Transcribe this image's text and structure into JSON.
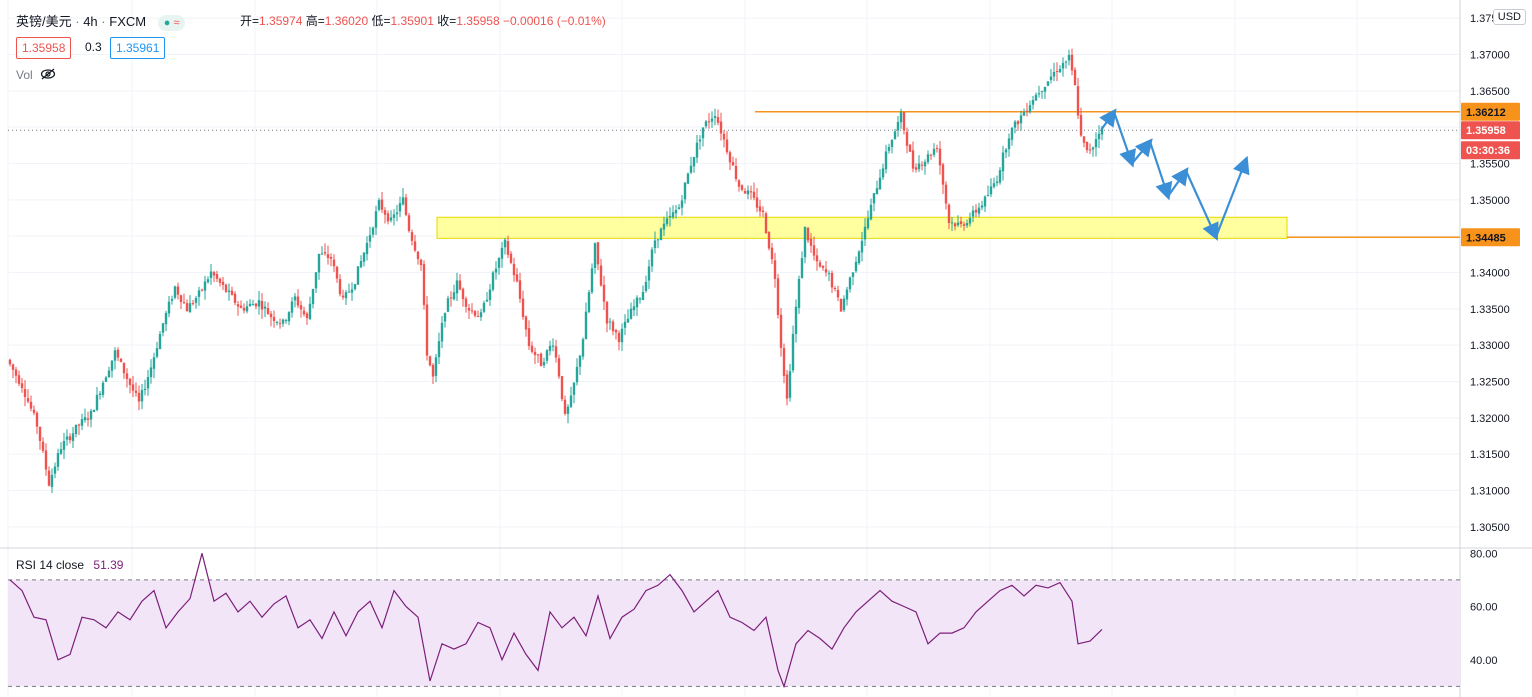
{
  "header": {
    "symbol": "英镑/美元",
    "interval": "4h",
    "exchange": "FXCM",
    "open_label": "开=",
    "open": "1.35974",
    "high_label": "高=",
    "high": "1.36020",
    "low_label": "低=",
    "low": "1.35901",
    "close_label": "收=",
    "close": "1.35958",
    "change": "−0.00016 (−0.01%)",
    "bid": "1.35958",
    "spread": "0.3",
    "ask": "1.35961",
    "vol_label": "Vol"
  },
  "axis": {
    "currency": "USD",
    "price_ticks": [
      "1.37500",
      "1.37000",
      "1.36500",
      "1.36000",
      "1.35500",
      "1.35000",
      "1.34500",
      "1.34000",
      "1.33500",
      "1.33000",
      "1.32500",
      "1.32000",
      "1.31500",
      "1.31000",
      "1.30500"
    ],
    "rsi_ticks": [
      "80.00",
      "60.00",
      "40.00"
    ]
  },
  "price_tags": {
    "resistance": "1.36212",
    "last": "1.35958",
    "countdown": "03:30:36",
    "support": "1.34485"
  },
  "rsi": {
    "label": "RSI 14 close",
    "value": "51.39"
  },
  "colors": {
    "up": "#26a69a",
    "down": "#ef5350",
    "level_line": "#f7931a",
    "zone_fill": "#ffff80",
    "arrow": "#3b8fd6",
    "rsi_line": "#7b1f7a",
    "rsi_band": "#f3e5f8"
  },
  "chart_data": {
    "type": "candlestick",
    "title": "英镑/美元 · 4h · FXCM",
    "y_range": [
      1.3025,
      1.3775
    ],
    "resistance_level": 1.36212,
    "support_level": 1.34485,
    "support_zone": [
      1.3447,
      1.3476
    ],
    "anchors": [
      [
        0,
        1.328
      ],
      [
        5,
        1.3245
      ],
      [
        10,
        1.319
      ],
      [
        14,
        1.311
      ],
      [
        18,
        1.316
      ],
      [
        24,
        1.319
      ],
      [
        28,
        1.3205
      ],
      [
        32,
        1.325
      ],
      [
        36,
        1.329
      ],
      [
        40,
        1.3255
      ],
      [
        44,
        1.322
      ],
      [
        48,
        1.327
      ],
      [
        52,
        1.333
      ],
      [
        56,
        1.338
      ],
      [
        60,
        1.335
      ],
      [
        64,
        1.337
      ],
      [
        68,
        1.34
      ],
      [
        72,
        1.338
      ],
      [
        78,
        1.335
      ],
      [
        84,
        1.336
      ],
      [
        88,
        1.334
      ],
      [
        92,
        1.333
      ],
      [
        96,
        1.3365
      ],
      [
        100,
        1.3335
      ],
      [
        104,
        1.3425
      ],
      [
        108,
        1.342
      ],
      [
        112,
        1.336
      ],
      [
        116,
        1.339
      ],
      [
        120,
        1.344
      ],
      [
        124,
        1.3495
      ],
      [
        128,
        1.347
      ],
      [
        132,
        1.35
      ],
      [
        134,
        1.346
      ],
      [
        138,
        1.341
      ],
      [
        140,
        1.329
      ],
      [
        142,
        1.3255
      ],
      [
        146,
        1.335
      ],
      [
        150,
        1.3385
      ],
      [
        154,
        1.335
      ],
      [
        158,
        1.334
      ],
      [
        162,
        1.3395
      ],
      [
        166,
        1.344
      ],
      [
        170,
        1.3385
      ],
      [
        174,
        1.33
      ],
      [
        178,
        1.3275
      ],
      [
        182,
        1.3305
      ],
      [
        184,
        1.326
      ],
      [
        186,
        1.32
      ],
      [
        188,
        1.3225
      ],
      [
        192,
        1.331
      ],
      [
        196,
        1.3435
      ],
      [
        200,
        1.3335
      ],
      [
        204,
        1.331
      ],
      [
        208,
        1.3345
      ],
      [
        212,
        1.3375
      ],
      [
        216,
        1.3445
      ],
      [
        220,
        1.347
      ],
      [
        224,
        1.349
      ],
      [
        228,
        1.355
      ],
      [
        232,
        1.36
      ],
      [
        236,
        1.362
      ],
      [
        240,
        1.357
      ],
      [
        244,
        1.352
      ],
      [
        248,
        1.3505
      ],
      [
        252,
        1.348
      ],
      [
        256,
        1.3395
      ],
      [
        258,
        1.33
      ],
      [
        260,
        1.3225
      ],
      [
        262,
        1.3315
      ],
      [
        266,
        1.346
      ],
      [
        270,
        1.341
      ],
      [
        274,
        1.3395
      ],
      [
        278,
        1.335
      ],
      [
        282,
        1.3405
      ],
      [
        286,
        1.346
      ],
      [
        290,
        1.352
      ],
      [
        294,
        1.3575
      ],
      [
        298,
        1.3615
      ],
      [
        302,
        1.3545
      ],
      [
        306,
        1.3555
      ],
      [
        310,
        1.3575
      ],
      [
        314,
        1.347
      ],
      [
        318,
        1.3465
      ],
      [
        322,
        1.348
      ],
      [
        326,
        1.35
      ],
      [
        330,
        1.353
      ],
      [
        334,
        1.359
      ],
      [
        338,
        1.3615
      ],
      [
        342,
        1.364
      ],
      [
        346,
        1.366
      ],
      [
        350,
        1.368
      ],
      [
        354,
        1.3695
      ],
      [
        356,
        1.3655
      ],
      [
        358,
        1.3585
      ],
      [
        360,
        1.3565
      ],
      [
        362,
        1.3575
      ],
      [
        364,
        1.3596
      ]
    ],
    "projection": [
      [
        364,
        1.3598
      ],
      [
        368,
        1.3621
      ],
      [
        374,
        1.355
      ],
      [
        380,
        1.358
      ],
      [
        386,
        1.3505
      ],
      [
        392,
        1.354
      ],
      [
        402,
        1.3449
      ],
      [
        412,
        1.3555
      ]
    ],
    "rsi_anchors": [
      [
        0,
        70
      ],
      [
        4,
        66
      ],
      [
        8,
        56
      ],
      [
        12,
        55
      ],
      [
        16,
        40
      ],
      [
        20,
        42
      ],
      [
        24,
        56
      ],
      [
        28,
        55
      ],
      [
        32,
        52
      ],
      [
        36,
        58
      ],
      [
        40,
        55
      ],
      [
        44,
        62
      ],
      [
        48,
        66
      ],
      [
        52,
        52
      ],
      [
        56,
        58
      ],
      [
        60,
        63
      ],
      [
        64,
        80
      ],
      [
        68,
        62
      ],
      [
        72,
        65
      ],
      [
        76,
        58
      ],
      [
        80,
        62
      ],
      [
        84,
        56
      ],
      [
        88,
        61
      ],
      [
        92,
        64
      ],
      [
        96,
        52
      ],
      [
        100,
        55
      ],
      [
        104,
        48
      ],
      [
        108,
        58
      ],
      [
        112,
        49
      ],
      [
        116,
        58
      ],
      [
        120,
        62
      ],
      [
        124,
        52
      ],
      [
        128,
        66
      ],
      [
        132,
        60
      ],
      [
        136,
        56
      ],
      [
        140,
        32
      ],
      [
        144,
        46
      ],
      [
        148,
        44
      ],
      [
        152,
        46
      ],
      [
        156,
        54
      ],
      [
        160,
        52
      ],
      [
        164,
        40
      ],
      [
        168,
        50
      ],
      [
        172,
        42
      ],
      [
        176,
        36
      ],
      [
        180,
        58
      ],
      [
        184,
        52
      ],
      [
        188,
        56
      ],
      [
        192,
        49
      ],
      [
        196,
        64
      ],
      [
        200,
        48
      ],
      [
        204,
        56
      ],
      [
        208,
        59
      ],
      [
        212,
        66
      ],
      [
        216,
        68
      ],
      [
        220,
        72
      ],
      [
        224,
        66
      ],
      [
        228,
        58
      ],
      [
        232,
        62
      ],
      [
        236,
        66
      ],
      [
        240,
        56
      ],
      [
        244,
        54
      ],
      [
        248,
        51
      ],
      [
        252,
        56
      ],
      [
        256,
        36
      ],
      [
        258,
        30
      ],
      [
        262,
        46
      ],
      [
        266,
        51
      ],
      [
        270,
        48
      ],
      [
        274,
        44
      ],
      [
        278,
        52
      ],
      [
        282,
        58
      ],
      [
        286,
        62
      ],
      [
        290,
        66
      ],
      [
        294,
        62
      ],
      [
        298,
        60
      ],
      [
        302,
        58
      ],
      [
        306,
        46
      ],
      [
        310,
        50
      ],
      [
        314,
        50
      ],
      [
        318,
        52
      ],
      [
        322,
        58
      ],
      [
        326,
        62
      ],
      [
        330,
        66
      ],
      [
        334,
        68
      ],
      [
        338,
        64
      ],
      [
        342,
        68
      ],
      [
        346,
        67
      ],
      [
        350,
        69
      ],
      [
        354,
        62
      ],
      [
        356,
        46
      ],
      [
        360,
        47
      ],
      [
        364,
        51.39
      ]
    ]
  }
}
